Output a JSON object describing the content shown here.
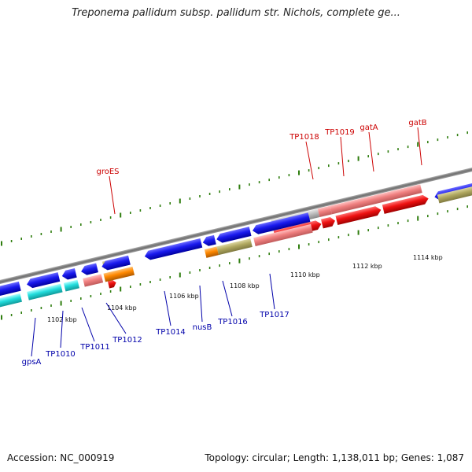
{
  "title": "Treponema pallidum subsp. pallidum str. Nichols, complete ge...",
  "footer": {
    "accession": "Accession: NC_000919",
    "summary": "Topology: circular; Length: 1,138,011 bp; Genes: 1,087"
  },
  "colors": {
    "backbone": "#808080",
    "top_label": "#cc0000",
    "bottom_label": "#0000aa",
    "tick": "#2e7d0e",
    "blue": "#1a1aee",
    "red": "#ee1111",
    "pink": "#f08080",
    "cyan": "#22dddd",
    "olive": "#b0a860",
    "orange": "#ff8800",
    "gray": "#bbbbbb"
  },
  "scale_labels": [
    "1102 kbp",
    "1104 kbp",
    "1106 kbp",
    "1108 kbp",
    "1110 kbp",
    "1112 kbp",
    "1114 kbp"
  ],
  "top_labels": [
    "groES",
    "TP1018",
    "TP1019",
    "gatA",
    "gatB"
  ],
  "bottom_labels": [
    "gpsA",
    "TP1010",
    "TP1011",
    "TP1012",
    "TP1014",
    "nusB",
    "TP1016",
    "TP1017"
  ]
}
